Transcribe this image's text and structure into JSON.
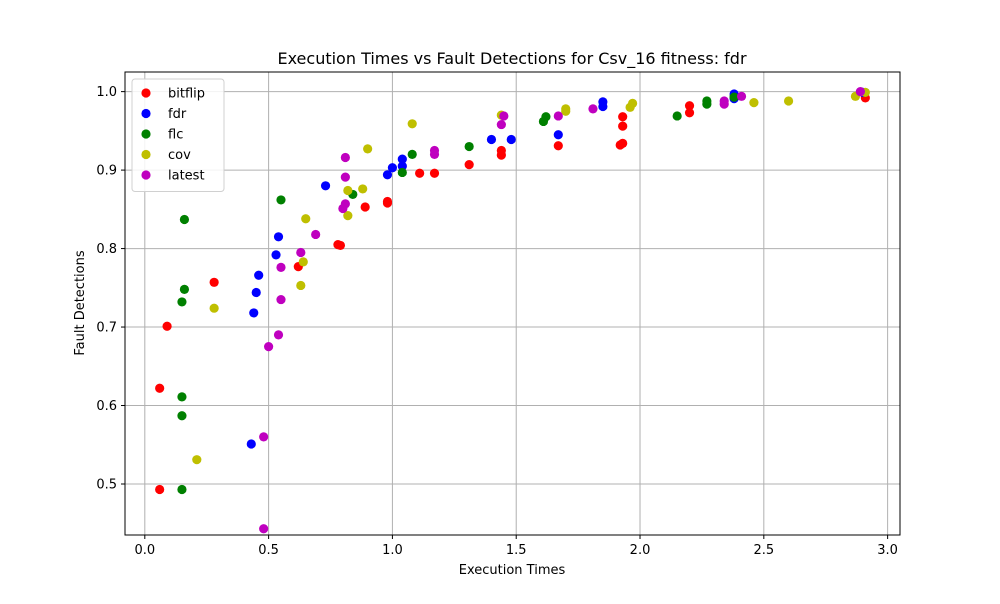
{
  "chart_data": {
    "type": "scatter",
    "title": "Execution Times vs Fault Detections for Csv_16 fitness: fdr",
    "xlabel": "Execution Times",
    "ylabel": "Fault Detections",
    "xlim": [
      -0.08,
      3.05
    ],
    "ylim": [
      0.435,
      1.025
    ],
    "xticks": [
      0.0,
      0.5,
      1.0,
      1.5,
      2.0,
      2.5,
      3.0
    ],
    "xtick_labels": [
      "0.0",
      "0.5",
      "1.0",
      "1.5",
      "2.0",
      "2.5",
      "3.0"
    ],
    "yticks": [
      0.5,
      0.6,
      0.7,
      0.8,
      0.9,
      1.0
    ],
    "ytick_labels": [
      "0.5",
      "0.6",
      "0.7",
      "0.8",
      "0.9",
      "1.0"
    ],
    "grid": true,
    "legend_position": "top-left",
    "series": [
      {
        "name": "bitflip",
        "color": "#ff0000",
        "points": [
          [
            0.06,
            0.493
          ],
          [
            0.06,
            0.622
          ],
          [
            0.09,
            0.701
          ],
          [
            0.28,
            0.757
          ],
          [
            0.62,
            0.777
          ],
          [
            0.78,
            0.805
          ],
          [
            0.79,
            0.804
          ],
          [
            0.89,
            0.853
          ],
          [
            0.98,
            0.858
          ],
          [
            0.98,
            0.86
          ],
          [
            1.11,
            0.896
          ],
          [
            1.17,
            0.896
          ],
          [
            1.31,
            0.907
          ],
          [
            1.44,
            0.925
          ],
          [
            1.44,
            0.919
          ],
          [
            1.67,
            0.931
          ],
          [
            1.92,
            0.932
          ],
          [
            1.93,
            0.934
          ],
          [
            1.93,
            0.956
          ],
          [
            1.93,
            0.968
          ],
          [
            2.2,
            0.973
          ],
          [
            2.2,
            0.982
          ],
          [
            2.38,
            0.994
          ],
          [
            2.91,
            0.992
          ]
        ]
      },
      {
        "name": "fdr",
        "color": "#0000ff",
        "points": [
          [
            0.43,
            0.551
          ],
          [
            0.44,
            0.718
          ],
          [
            0.45,
            0.744
          ],
          [
            0.46,
            0.766
          ],
          [
            0.53,
            0.792
          ],
          [
            0.54,
            0.815
          ],
          [
            0.73,
            0.88
          ],
          [
            0.98,
            0.894
          ],
          [
            1.0,
            0.903
          ],
          [
            1.04,
            0.905
          ],
          [
            1.04,
            0.914
          ],
          [
            1.4,
            0.939
          ],
          [
            1.48,
            0.939
          ],
          [
            1.67,
            0.945
          ],
          [
            1.85,
            0.981
          ],
          [
            1.85,
            0.987
          ],
          [
            2.38,
            0.991
          ],
          [
            2.38,
            0.997
          ],
          [
            2.9,
            0.999
          ]
        ]
      },
      {
        "name": "flc",
        "color": "#008000",
        "points": [
          [
            0.15,
            0.493
          ],
          [
            0.15,
            0.587
          ],
          [
            0.15,
            0.611
          ],
          [
            0.15,
            0.732
          ],
          [
            0.16,
            0.748
          ],
          [
            0.16,
            0.837
          ],
          [
            0.55,
            0.862
          ],
          [
            0.84,
            0.869
          ],
          [
            1.04,
            0.897
          ],
          [
            1.08,
            0.92
          ],
          [
            1.31,
            0.93
          ],
          [
            1.61,
            0.962
          ],
          [
            1.62,
            0.968
          ],
          [
            2.15,
            0.969
          ],
          [
            2.27,
            0.984
          ],
          [
            2.27,
            0.988
          ],
          [
            2.38,
            0.993
          ]
        ]
      },
      {
        "name": "cov",
        "color": "#bfbf00",
        "points": [
          [
            0.21,
            0.531
          ],
          [
            0.28,
            0.724
          ],
          [
            0.63,
            0.753
          ],
          [
            0.64,
            0.783
          ],
          [
            0.65,
            0.838
          ],
          [
            0.82,
            0.842
          ],
          [
            0.82,
            0.874
          ],
          [
            0.88,
            0.876
          ],
          [
            0.9,
            0.927
          ],
          [
            1.08,
            0.959
          ],
          [
            1.44,
            0.97
          ],
          [
            1.7,
            0.975
          ],
          [
            1.7,
            0.978
          ],
          [
            1.96,
            0.98
          ],
          [
            1.97,
            0.985
          ],
          [
            2.46,
            0.986
          ],
          [
            2.6,
            0.988
          ],
          [
            2.87,
            0.994
          ],
          [
            2.91,
            0.999
          ]
        ]
      },
      {
        "name": "latest",
        "color": "#bf00bf",
        "points": [
          [
            0.48,
            0.443
          ],
          [
            0.48,
            0.56
          ],
          [
            0.5,
            0.675
          ],
          [
            0.54,
            0.69
          ],
          [
            0.55,
            0.735
          ],
          [
            0.55,
            0.776
          ],
          [
            0.63,
            0.795
          ],
          [
            0.69,
            0.818
          ],
          [
            0.8,
            0.851
          ],
          [
            0.81,
            0.857
          ],
          [
            0.81,
            0.891
          ],
          [
            0.81,
            0.916
          ],
          [
            1.17,
            0.92
          ],
          [
            1.17,
            0.925
          ],
          [
            1.44,
            0.958
          ],
          [
            1.45,
            0.969
          ],
          [
            1.67,
            0.969
          ],
          [
            1.81,
            0.978
          ],
          [
            2.34,
            0.984
          ],
          [
            2.34,
            0.988
          ],
          [
            2.41,
            0.994
          ],
          [
            2.89,
            1.0
          ]
        ]
      }
    ]
  }
}
